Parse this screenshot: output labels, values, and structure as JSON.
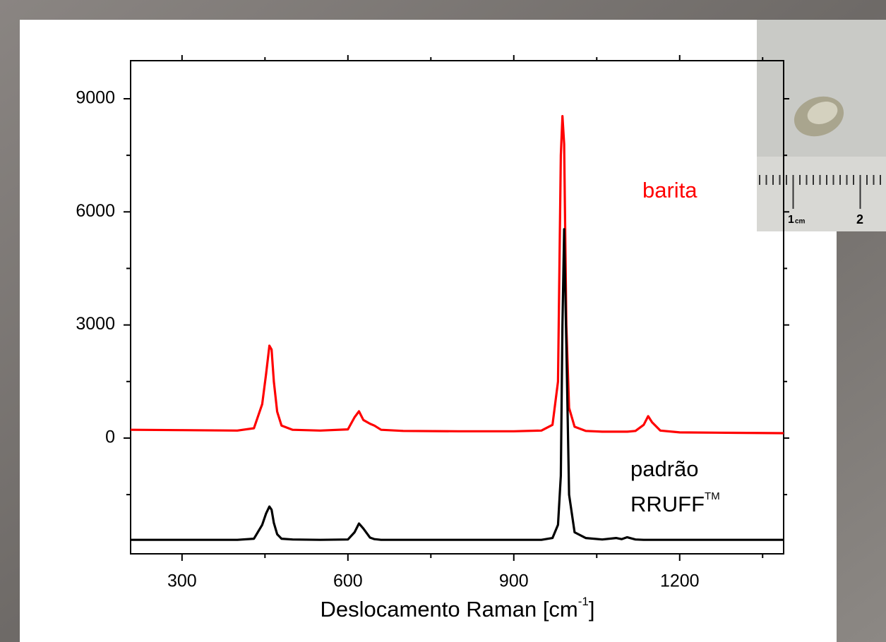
{
  "chart_data": {
    "type": "line",
    "x_label": {
      "text": "Deslocamento Raman [cm",
      "sup": "-1",
      "end": "]"
    },
    "xlim": [
      207,
      1388
    ],
    "xticks": [
      300,
      600,
      900,
      1200
    ],
    "ylim": [
      -3070,
      10010
    ],
    "yticks": [
      0,
      3000,
      6000,
      9000
    ],
    "x": [
      207,
      300,
      400,
      430,
      445,
      452,
      458,
      462,
      466,
      472,
      480,
      500,
      550,
      600,
      612,
      620,
      628,
      640,
      648,
      660,
      700,
      800,
      900,
      950,
      970,
      980,
      985,
      988,
      991,
      995,
      1000,
      1010,
      1030,
      1060,
      1085,
      1095,
      1105,
      1120,
      1135,
      1143,
      1150,
      1165,
      1200,
      1300,
      1388
    ],
    "series": [
      {
        "name": "barita",
        "color": "#ff0000",
        "values": [
          220,
          210,
          200,
          260,
          900,
          1700,
          2450,
          2350,
          1500,
          700,
          330,
          220,
          200,
          230,
          550,
          710,
          480,
          380,
          330,
          220,
          190,
          180,
          180,
          200,
          350,
          1500,
          7500,
          8540,
          7800,
          3000,
          800,
          300,
          190,
          170,
          170,
          170,
          170,
          190,
          350,
          580,
          420,
          200,
          150,
          140,
          130
        ]
      },
      {
        "name": "padrão",
        "name_line2": "RRUFF",
        "name_sup": "TM",
        "color": "#000000",
        "values": [
          -2700,
          -2700,
          -2700,
          -2670,
          -2300,
          -2000,
          -1816,
          -1900,
          -2250,
          -2550,
          -2670,
          -2690,
          -2700,
          -2690,
          -2500,
          -2266,
          -2400,
          -2640,
          -2680,
          -2700,
          -2700,
          -2700,
          -2700,
          -2700,
          -2650,
          -2300,
          -1000,
          3000,
          5540,
          2500,
          -1500,
          -2500,
          -2650,
          -2690,
          -2650,
          -2680,
          -2630,
          -2690,
          -2700,
          -2700,
          -2700,
          -2700,
          -2700,
          -2700,
          -2700
        ]
      }
    ]
  },
  "photo": {
    "labels": [
      "1",
      "cm",
      "2"
    ]
  }
}
